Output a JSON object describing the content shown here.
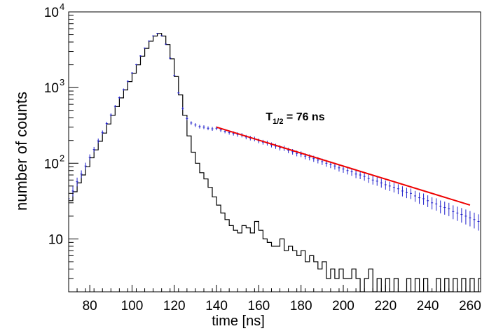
{
  "chart_data": {
    "type": "scatter",
    "title": "",
    "xlabel": "time [ns]",
    "ylabel": "number of counts",
    "xlim": [
      70,
      265
    ],
    "ylim": [
      2,
      10000
    ],
    "yscale": "log",
    "grid": false,
    "legend": "none",
    "x_ticks": [
      {
        "value": 80,
        "label": "80"
      },
      {
        "value": 100,
        "label": "100"
      },
      {
        "value": 120,
        "label": "120"
      },
      {
        "value": 140,
        "label": "140"
      },
      {
        "value": 160,
        "label": "160"
      },
      {
        "value": 180,
        "label": "180"
      },
      {
        "value": 200,
        "label": "200"
      },
      {
        "value": 220,
        "label": "220"
      },
      {
        "value": 240,
        "label": "240"
      },
      {
        "value": 260,
        "label": "260"
      }
    ],
    "y_ticks": [
      {
        "value": 10,
        "label": "10",
        "sup": ""
      },
      {
        "value": 100,
        "label": "10",
        "sup": "2"
      },
      {
        "value": 1000,
        "label": "10",
        "sup": "3"
      },
      {
        "value": 10000,
        "label": "10",
        "sup": "4"
      }
    ],
    "annotation": {
      "main": "T",
      "sub": "1/2",
      "rest": " = 76 ns",
      "x": 160,
      "y": 420
    },
    "series": [
      {
        "style": "histogram",
        "color": "#000000",
        "points": [
          [
            70,
            32
          ],
          [
            72,
            42
          ],
          [
            74,
            55
          ],
          [
            76,
            70
          ],
          [
            78,
            90
          ],
          [
            80,
            118
          ],
          [
            82,
            150
          ],
          [
            84,
            195
          ],
          [
            86,
            250
          ],
          [
            88,
            330
          ],
          [
            90,
            430
          ],
          [
            92,
            560
          ],
          [
            94,
            730
          ],
          [
            96,
            930
          ],
          [
            98,
            1200
          ],
          [
            100,
            1550
          ],
          [
            102,
            2000
          ],
          [
            104,
            2600
          ],
          [
            106,
            3300
          ],
          [
            108,
            4100
          ],
          [
            110,
            4800
          ],
          [
            112,
            5200
          ],
          [
            114,
            4800
          ],
          [
            116,
            3700
          ],
          [
            118,
            2400
          ],
          [
            120,
            1400
          ],
          [
            122,
            800
          ],
          [
            124,
            430
          ],
          [
            126,
            230
          ],
          [
            128,
            140
          ],
          [
            130,
            100
          ],
          [
            132,
            75
          ],
          [
            134,
            62
          ],
          [
            136,
            48
          ],
          [
            138,
            36
          ],
          [
            140,
            28
          ],
          [
            142,
            22
          ],
          [
            144,
            18
          ],
          [
            146,
            15
          ],
          [
            148,
            13
          ],
          [
            150,
            12
          ],
          [
            152,
            15
          ],
          [
            154,
            14
          ],
          [
            156,
            12
          ],
          [
            158,
            17
          ],
          [
            160,
            13
          ],
          [
            162,
            10
          ],
          [
            164,
            9
          ],
          [
            166,
            8
          ],
          [
            168,
            8
          ],
          [
            170,
            10
          ],
          [
            172,
            7
          ],
          [
            174,
            8
          ],
          [
            176,
            7
          ],
          [
            178,
            6
          ],
          [
            180,
            7
          ],
          [
            182,
            5
          ],
          [
            184,
            6
          ],
          [
            186,
            5
          ],
          [
            188,
            4
          ],
          [
            190,
            5
          ],
          [
            192,
            3
          ],
          [
            194,
            4
          ],
          [
            196,
            3
          ],
          [
            198,
            4
          ],
          [
            200,
            3
          ],
          [
            202,
            3
          ],
          [
            204,
            4
          ],
          [
            206,
            3
          ],
          [
            208,
            2
          ],
          [
            210,
            3
          ],
          [
            212,
            4
          ],
          [
            214,
            2
          ],
          [
            216,
            3
          ],
          [
            218,
            2
          ],
          [
            220,
            3
          ],
          [
            222,
            2
          ],
          [
            224,
            3
          ],
          [
            226,
            2
          ],
          [
            228,
            2
          ],
          [
            230,
            3
          ],
          [
            232,
            2
          ],
          [
            234,
            3
          ],
          [
            236,
            2
          ],
          [
            238,
            3
          ],
          [
            240,
            2
          ],
          [
            242,
            2
          ],
          [
            244,
            3
          ],
          [
            246,
            2
          ],
          [
            248,
            3
          ],
          [
            250,
            2
          ],
          [
            252,
            3
          ],
          [
            254,
            2
          ],
          [
            256,
            3
          ],
          [
            258,
            2
          ],
          [
            260,
            3
          ],
          [
            262,
            2
          ],
          [
            264,
            3
          ]
        ]
      },
      {
        "style": "points-with-errors",
        "color": "#2222cc",
        "points": [
          [
            70,
            34
          ],
          [
            72,
            43
          ],
          [
            74,
            57
          ],
          [
            76,
            72
          ],
          [
            78,
            92
          ],
          [
            80,
            120
          ],
          [
            82,
            152
          ],
          [
            84,
            198
          ],
          [
            86,
            255
          ],
          [
            88,
            335
          ],
          [
            90,
            435
          ],
          [
            92,
            565
          ],
          [
            94,
            735
          ],
          [
            96,
            940
          ],
          [
            98,
            1210
          ],
          [
            100,
            1560
          ],
          [
            102,
            2010
          ],
          [
            104,
            2620
          ],
          [
            106,
            3320
          ],
          [
            108,
            4120
          ],
          [
            110,
            4820
          ],
          [
            112,
            5200
          ],
          [
            114,
            4850
          ],
          [
            116,
            3750
          ],
          [
            118,
            2450
          ],
          [
            120,
            1450
          ],
          [
            122,
            850
          ],
          [
            124,
            530
          ],
          [
            126,
            390
          ],
          [
            128,
            340
          ],
          [
            130,
            320
          ],
          [
            132,
            305
          ],
          [
            134,
            300
          ],
          [
            136,
            290
          ],
          [
            138,
            285
          ],
          [
            140,
            290
          ],
          [
            142,
            275
          ],
          [
            144,
            265
          ],
          [
            146,
            255
          ],
          [
            148,
            248
          ],
          [
            150,
            240
          ],
          [
            152,
            235
          ],
          [
            154,
            222
          ],
          [
            156,
            215
          ],
          [
            158,
            210
          ],
          [
            160,
            198
          ],
          [
            162,
            190
          ],
          [
            164,
            185
          ],
          [
            166,
            175
          ],
          [
            168,
            168
          ],
          [
            170,
            160
          ],
          [
            172,
            158
          ],
          [
            174,
            148
          ],
          [
            176,
            142
          ],
          [
            178,
            135
          ],
          [
            180,
            132
          ],
          [
            182,
            124
          ],
          [
            184,
            120
          ],
          [
            186,
            115
          ],
          [
            188,
            110
          ],
          [
            190,
            105
          ],
          [
            192,
            100
          ],
          [
            194,
            96
          ],
          [
            196,
            92
          ],
          [
            198,
            87
          ],
          [
            200,
            84
          ],
          [
            202,
            80
          ],
          [
            204,
            77
          ],
          [
            206,
            72
          ],
          [
            208,
            70
          ],
          [
            210,
            67
          ],
          [
            212,
            63
          ],
          [
            214,
            60
          ],
          [
            216,
            58
          ],
          [
            218,
            55
          ],
          [
            220,
            52
          ],
          [
            222,
            50
          ],
          [
            224,
            48
          ],
          [
            226,
            46
          ],
          [
            228,
            43
          ],
          [
            230,
            41
          ],
          [
            232,
            40
          ],
          [
            234,
            37
          ],
          [
            236,
            35
          ],
          [
            238,
            34
          ],
          [
            240,
            32
          ],
          [
            242,
            30
          ],
          [
            244,
            29
          ],
          [
            246,
            27
          ],
          [
            248,
            26
          ],
          [
            250,
            25
          ],
          [
            252,
            23
          ],
          [
            254,
            22
          ],
          [
            256,
            21
          ],
          [
            258,
            20
          ],
          [
            260,
            19
          ],
          [
            262,
            18
          ],
          [
            264,
            17
          ]
        ]
      },
      {
        "style": "line",
        "color": "#ee0000",
        "points": [
          [
            140,
            300
          ],
          [
            260,
            28
          ]
        ]
      }
    ]
  }
}
